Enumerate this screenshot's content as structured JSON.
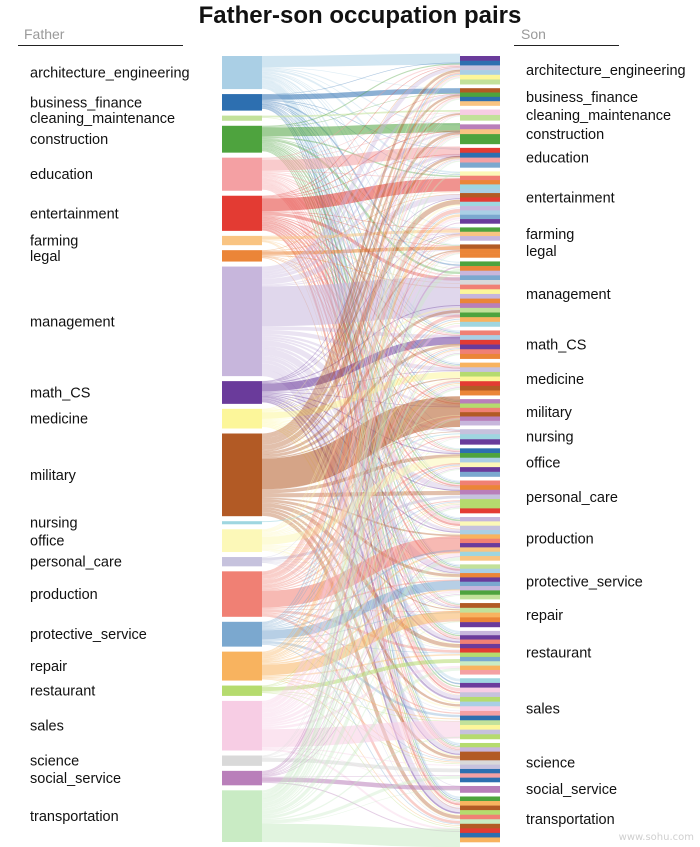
{
  "chart_data": {
    "type": "sankey",
    "title": "Father-son occupation pairs",
    "left_header": "Father",
    "right_header": "Son",
    "categories": [
      {
        "name": "architecture_engineering",
        "color": "#aacfe5",
        "father_share": 32,
        "son_share": 26
      },
      {
        "name": "business_finance",
        "color": "#2d6fb0",
        "father_share": 16,
        "son_share": 16
      },
      {
        "name": "cleaning_maintenance",
        "color": "#c2e19a",
        "father_share": 5,
        "son_share": 10
      },
      {
        "name": "construction",
        "color": "#4ea33e",
        "father_share": 26,
        "son_share": 18
      },
      {
        "name": "education",
        "color": "#f4a0a3",
        "father_share": 32,
        "son_share": 18
      },
      {
        "name": "entertainment",
        "color": "#e33b33",
        "father_share": 34,
        "son_share": 48
      },
      {
        "name": "farming",
        "color": "#f9c482",
        "father_share": 9,
        "son_share": 12
      },
      {
        "name": "legal",
        "color": "#eb8538",
        "father_share": 11,
        "son_share": 12
      },
      {
        "name": "management",
        "color": "#c7b6dc",
        "father_share": 106,
        "son_share": 60
      },
      {
        "name": "math_CS",
        "color": "#6a3b9b",
        "father_share": 22,
        "son_share": 26
      },
      {
        "name": "medicine",
        "color": "#fcf69a",
        "father_share": 19,
        "son_share": 30
      },
      {
        "name": "military",
        "color": "#b25a25",
        "father_share": 80,
        "son_share": 24
      },
      {
        "name": "nursing",
        "color": "#9fd6e0",
        "father_share": 3,
        "son_share": 14
      },
      {
        "name": "office",
        "color": "#fcf8b8",
        "father_share": 22,
        "son_share": 26
      },
      {
        "name": "personal_care",
        "color": "#c6c2dd",
        "father_share": 9,
        "son_share": 30
      },
      {
        "name": "production",
        "color": "#f08074",
        "father_share": 44,
        "son_share": 40
      },
      {
        "name": "protective_service",
        "color": "#7ba8cf",
        "father_share": 24,
        "son_share": 32
      },
      {
        "name": "repair",
        "color": "#f8b35f",
        "father_share": 28,
        "son_share": 22
      },
      {
        "name": "restaurant",
        "color": "#b5db6e",
        "father_share": 10,
        "son_share": 40
      },
      {
        "name": "sales",
        "color": "#f7cde4",
        "father_share": 48,
        "son_share": 56
      },
      {
        "name": "science",
        "color": "#d9d9d9",
        "father_share": 10,
        "son_share": 36
      },
      {
        "name": "social_service",
        "color": "#b97fba",
        "father_share": 14,
        "son_share": 6
      },
      {
        "name": "transportation",
        "color": "#c9ebc4",
        "father_share": 50,
        "son_share": 42
      }
    ]
  },
  "watermark": "www.sohu.com"
}
